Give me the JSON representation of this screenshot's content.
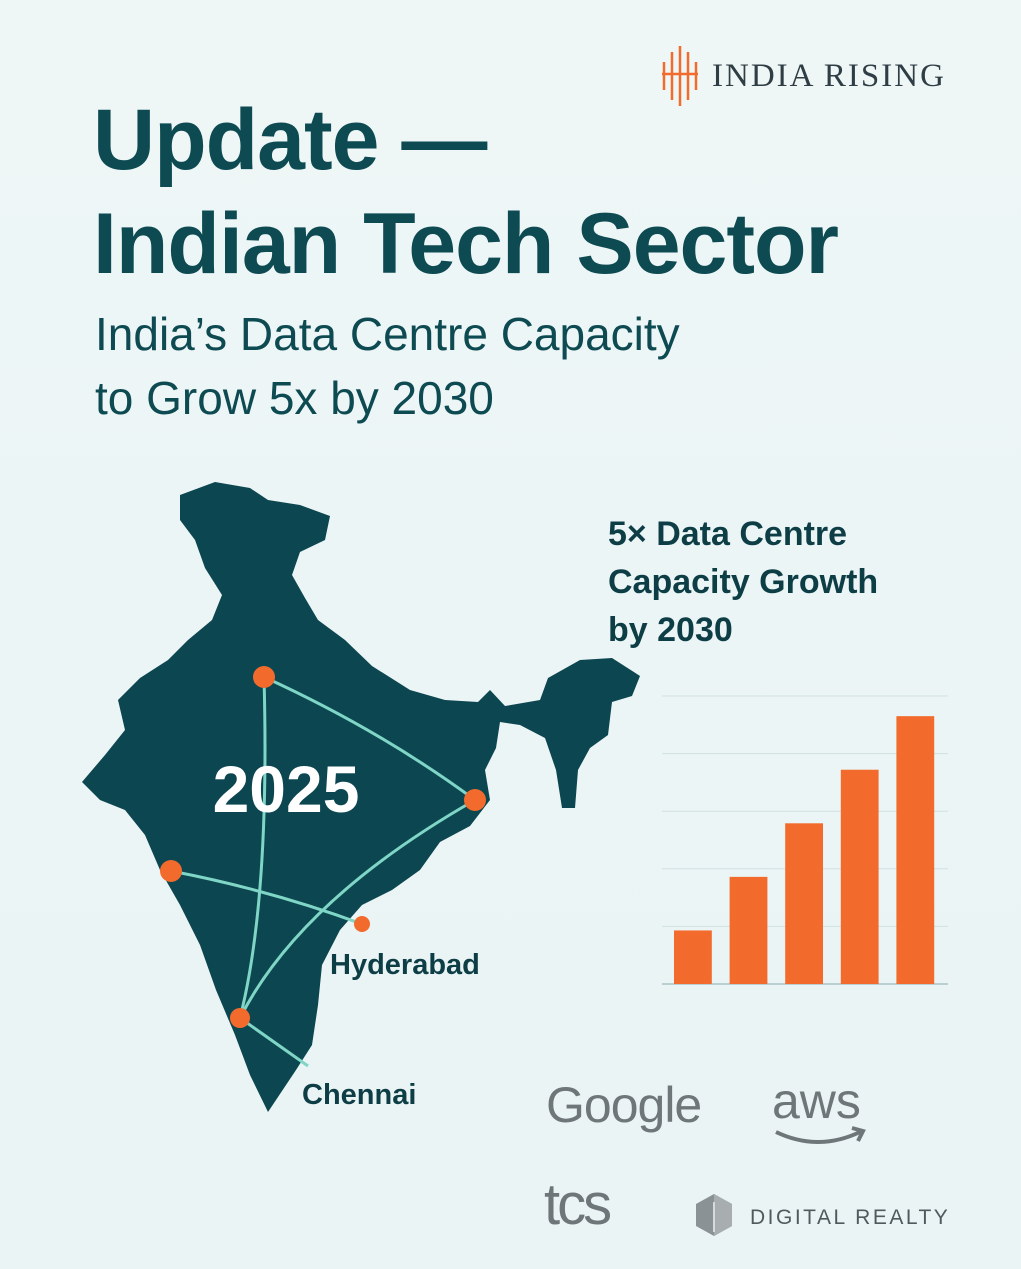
{
  "brand": {
    "name": "INDIA RISING"
  },
  "header": {
    "headline_line1": "Update —",
    "headline_line2": "Indian Tech Sector",
    "subtitle_line1": "India’s Data Centre Capacity",
    "subtitle_line2": "to Grow 5x by 2030"
  },
  "map": {
    "year_label": "2025",
    "cities": [
      {
        "label": "Hyderabad"
      },
      {
        "label": "Chennai"
      }
    ]
  },
  "chart_title": {
    "line1": "5× Data Centre",
    "line2": "Capacity Growth",
    "line3": "by 2030"
  },
  "chart_data": {
    "type": "bar",
    "categories": [
      "",
      "",
      "",
      "",
      ""
    ],
    "values": [
      1,
      2,
      3,
      4,
      5
    ],
    "title": "5× Data Centre Capacity Growth by 2030",
    "xlabel": "",
    "ylabel": "",
    "ylim": [
      0,
      5
    ],
    "grid": true,
    "colors": {
      "bar": "#f26b2d",
      "grid": "#cfe0e2",
      "axis": "#b9cfd2"
    }
  },
  "partners": {
    "google": "Google",
    "aws": "aws",
    "tcs": "tcs",
    "digital_realty": "DIGITAL REALTY"
  },
  "colors": {
    "map": "#0c4650",
    "accent": "#f26b2d",
    "route": "#7fd6c6"
  }
}
